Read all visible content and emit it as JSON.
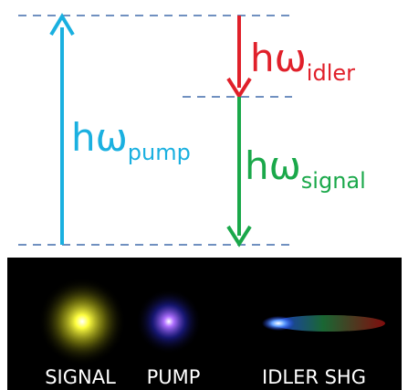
{
  "energy_levels": {
    "pump": {
      "symbol": "hω",
      "subscript": "pump"
    },
    "idler": {
      "symbol": "hω",
      "subscript": "idler"
    },
    "signal": {
      "symbol": "hω",
      "subscript": "signal"
    }
  },
  "photo": {
    "labels": [
      "SIGNAL",
      "PUMP",
      "IDLER SHG"
    ]
  }
}
